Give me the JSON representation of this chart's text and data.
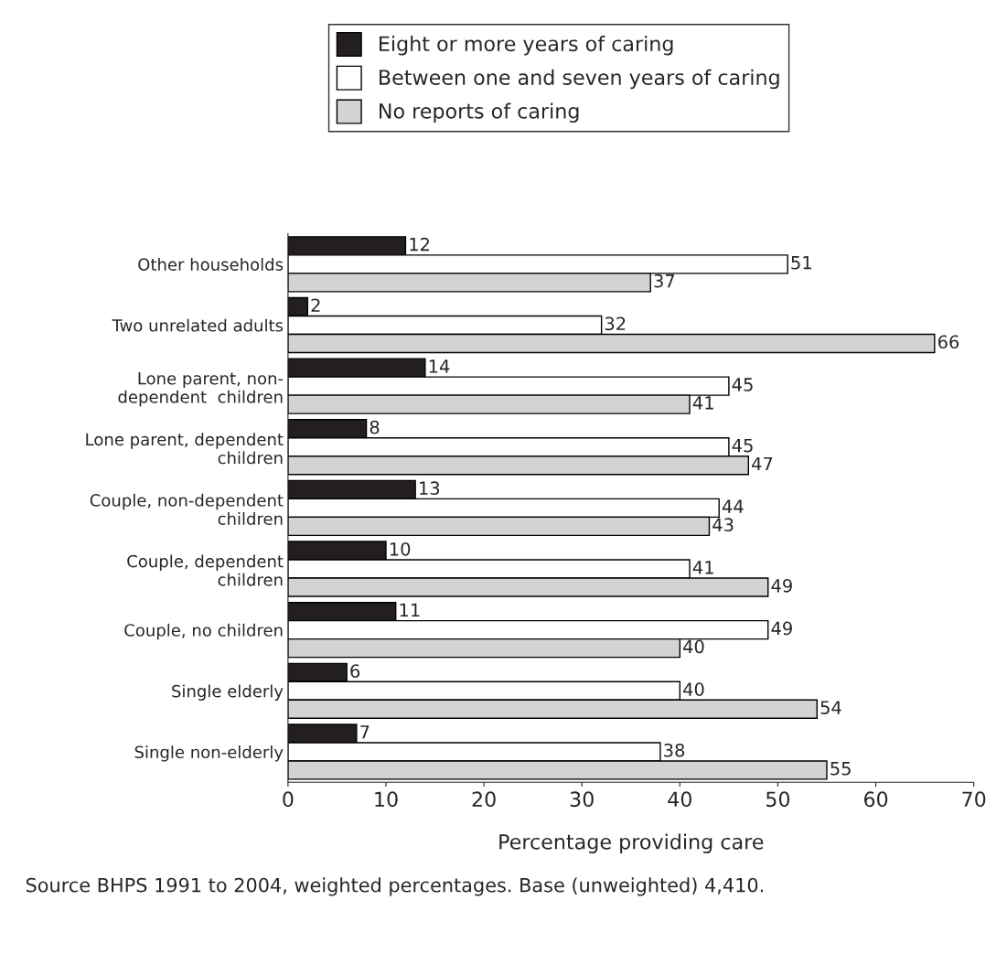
{
  "chart_data": {
    "type": "bar",
    "orientation": "horizontal",
    "xlabel": "Percentage providing care",
    "categories": [
      "Other households",
      "Two unrelated adults",
      "Lone parent, non-\ndependent  children",
      "Lone parent, dependent\nchildren",
      "Couple, non-dependent\nchildren",
      "Couple, dependent\nchildren",
      "Couple, no children",
      "Single elderly",
      "Single non-elderly"
    ],
    "series": [
      {
        "name": "Eight or more years of caring",
        "color": "#231f20",
        "values": [
          12,
          2,
          14,
          8,
          13,
          10,
          11,
          6,
          7
        ]
      },
      {
        "name": "Between one and seven years of caring",
        "color": "#ffffff",
        "values": [
          51,
          32,
          45,
          45,
          44,
          41,
          49,
          40,
          38
        ]
      },
      {
        "name": "No reports of caring",
        "color": "#d3d3d3",
        "values": [
          37,
          66,
          41,
          47,
          43,
          49,
          40,
          54,
          55
        ]
      }
    ],
    "xlim": [
      0,
      70
    ],
    "xticks": [
      0,
      10,
      20,
      30,
      40,
      50,
      60,
      70
    ],
    "data_labels": true,
    "grid": false,
    "legend": "top",
    "annotations": [
      "Source BHPS 1991 to 2004, weighted percentages. Base (unweighted) 4,410."
    ]
  }
}
